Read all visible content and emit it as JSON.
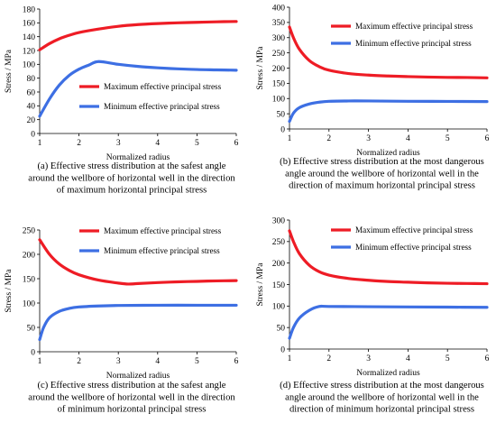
{
  "colors": {
    "max_series": "#ee1c25",
    "min_series": "#3d6fe3",
    "axis": "#000000"
  },
  "chart_data": [
    {
      "type": "line",
      "xlabel": "Normalized radius",
      "ylabel": "Stress / MPa",
      "xlim": [
        1,
        6
      ],
      "ylim": [
        0,
        180
      ],
      "xticks": [
        1,
        2,
        3,
        4,
        5,
        6
      ],
      "yticks": [
        0,
        20,
        40,
        60,
        80,
        100,
        120,
        140,
        160,
        180
      ],
      "legend_position": "middle-right",
      "series": [
        {
          "name": "Maximum effective principal stress",
          "color": "#ee1c25",
          "x": [
            1,
            1.25,
            1.5,
            1.75,
            2,
            2.5,
            3,
            3.5,
            4,
            4.5,
            5,
            5.5,
            6
          ],
          "y": [
            121,
            130,
            137,
            142,
            146,
            151,
            155,
            157.5,
            159,
            160,
            160.8,
            161.5,
            162
          ]
        },
        {
          "name": "Minimum effective principal stress",
          "color": "#3d6fe3",
          "x": [
            1,
            1.25,
            1.5,
            1.75,
            2,
            2.25,
            2.5,
            3,
            3.5,
            4,
            4.5,
            5,
            5.5,
            6
          ],
          "y": [
            25,
            50,
            70,
            84,
            93,
            99,
            104,
            100,
            97,
            95,
            93.5,
            92.5,
            92,
            91.5
          ]
        }
      ],
      "caption": [
        "(a) Effective stress distribution at the safest angle",
        "around the wellbore of horizontal well in the direction",
        "of maximum horizontal principal stress"
      ]
    },
    {
      "type": "line",
      "xlabel": "Normalized radius",
      "ylabel": "Stress / MPa",
      "xlim": [
        1,
        6
      ],
      "ylim": [
        0,
        400
      ],
      "xticks": [
        1,
        2,
        3,
        4,
        5,
        6
      ],
      "yticks": [
        0,
        50,
        100,
        150,
        200,
        250,
        300,
        350,
        400
      ],
      "legend_position": "top-right",
      "series": [
        {
          "name": "Maximum effective principal stress",
          "color": "#ee1c25",
          "x": [
            1,
            1.1,
            1.25,
            1.5,
            1.75,
            2,
            2.5,
            3,
            3.5,
            4,
            4.5,
            5,
            5.5,
            6
          ],
          "y": [
            335,
            300,
            262,
            225,
            205,
            193,
            182,
            177,
            174,
            172,
            170.5,
            169.5,
            169,
            168
          ]
        },
        {
          "name": "Minimum effective principal stress",
          "color": "#3d6fe3",
          "x": [
            1,
            1.1,
            1.25,
            1.5,
            1.75,
            2,
            2.5,
            3,
            4,
            5,
            6
          ],
          "y": [
            25,
            52,
            70,
            82,
            88,
            91,
            92,
            92,
            91,
            90.5,
            90
          ]
        }
      ],
      "caption": [
        "(b) Effective stress distribution at the most dangerous",
        "angle around the wellbore of horizontal well in the",
        "direction of maximum horizontal principal stress"
      ]
    },
    {
      "type": "line",
      "xlabel": "Normalized radius",
      "ylabel": "Stress / MPa",
      "xlim": [
        1,
        6
      ],
      "ylim": [
        0,
        250
      ],
      "xticks": [
        1,
        2,
        3,
        4,
        5,
        6
      ],
      "yticks": [
        0,
        50,
        100,
        150,
        200,
        250
      ],
      "legend_position": "top-right",
      "series": [
        {
          "name": "Maximum effective principal stress",
          "color": "#ee1c25",
          "x": [
            1,
            1.25,
            1.5,
            1.75,
            2,
            2.5,
            3,
            3.25,
            3.5,
            4,
            4.5,
            5,
            5.5,
            6
          ],
          "y": [
            230,
            200,
            180,
            167,
            158,
            147,
            141,
            139,
            140,
            142,
            143.5,
            144.5,
            145.5,
            146
          ]
        },
        {
          "name": "Minimum effective principal stress",
          "color": "#3d6fe3",
          "x": [
            1,
            1.1,
            1.25,
            1.5,
            1.75,
            2,
            2.5,
            3,
            4,
            5,
            6
          ],
          "y": [
            25,
            50,
            70,
            83,
            89,
            92,
            94,
            95,
            95.5,
            95.5,
            95.5
          ]
        }
      ],
      "caption": [
        "(c) Effective stress distribution at the safest angle",
        "around the wellbore of horizontal well in the direction",
        "of minimum horizontal principal stress"
      ]
    },
    {
      "type": "line",
      "xlabel": "Normalized radius",
      "ylabel": "Stress / MPa",
      "xlim": [
        1,
        6
      ],
      "ylim": [
        0,
        300
      ],
      "xticks": [
        1,
        2,
        3,
        4,
        5,
        6
      ],
      "yticks": [
        0,
        50,
        100,
        150,
        200,
        250,
        300
      ],
      "legend_position": "top-right",
      "series": [
        {
          "name": "Maximum effective principal stress",
          "color": "#ee1c25",
          "x": [
            1,
            1.1,
            1.25,
            1.5,
            1.75,
            2,
            2.5,
            3,
            3.5,
            4,
            4.5,
            5,
            5.5,
            6
          ],
          "y": [
            275,
            250,
            222,
            195,
            180,
            172,
            164,
            160,
            157,
            155.5,
            154,
            153,
            152.5,
            152
          ]
        },
        {
          "name": "Minimum effective principal stress",
          "color": "#3d6fe3",
          "x": [
            1,
            1.1,
            1.25,
            1.5,
            1.75,
            2,
            3,
            4,
            5,
            6
          ],
          "y": [
            25,
            50,
            72,
            90,
            99,
            99,
            98.5,
            98,
            97.5,
            97
          ]
        }
      ],
      "caption": [
        "(d) Effective stress distribution at the most dangerous",
        "angle around the wellbore of horizontal well in the",
        "direction of minimum horizontal principal stress"
      ]
    }
  ]
}
